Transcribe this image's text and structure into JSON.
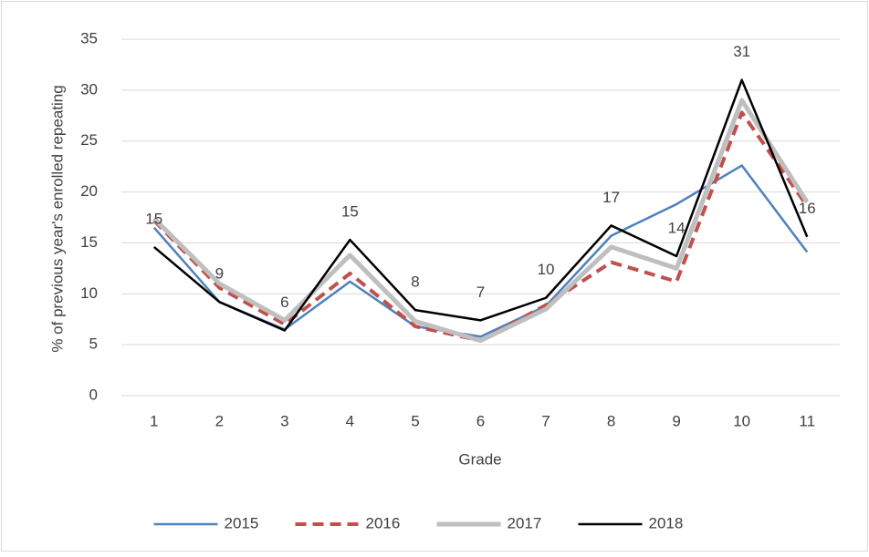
{
  "chart_data": {
    "type": "line",
    "x_label": "Grade",
    "y_label": "% of previous year's enrolled repeating",
    "categories": [
      "1",
      "2",
      "3",
      "4",
      "5",
      "6",
      "7",
      "8",
      "9",
      "10",
      "11"
    ],
    "series": [
      {
        "name": "2015",
        "color": "#4f81bd",
        "line_style": "solid",
        "line_width": 2.5,
        "values": [
          16.5,
          9.2,
          6.5,
          11.2,
          6.8,
          5.8,
          8.8,
          15.7,
          18.8,
          22.6,
          14.1
        ]
      },
      {
        "name": "2016",
        "color": "#c0504d",
        "line_style": "dashed",
        "line_width": 4,
        "values": [
          17.2,
          10.6,
          7.0,
          12.0,
          6.8,
          5.4,
          8.9,
          13.1,
          11.2,
          27.8,
          18.6
        ]
      },
      {
        "name": "2017",
        "color": "#bfbfbf",
        "line_style": "solid",
        "line_width": 5,
        "values": [
          17.4,
          11.0,
          7.4,
          13.8,
          7.3,
          5.4,
          8.5,
          14.6,
          12.5,
          29.0,
          19.0
        ]
      },
      {
        "name": "2018",
        "color": "#000000",
        "line_style": "solid",
        "line_width": 2.5,
        "values": [
          14.6,
          9.2,
          6.4,
          15.3,
          8.4,
          7.4,
          9.6,
          16.7,
          13.7,
          31.0,
          15.6
        ],
        "value_labels": [
          "15",
          "9",
          "6",
          "15",
          "8",
          "7",
          "10",
          "17",
          "14",
          "31",
          "16"
        ]
      }
    ],
    "ylim": [
      0,
      35
    ],
    "yticks": [
      0,
      5,
      10,
      15,
      20,
      25,
      30,
      35
    ],
    "grid": true,
    "legend": "bottom"
  }
}
